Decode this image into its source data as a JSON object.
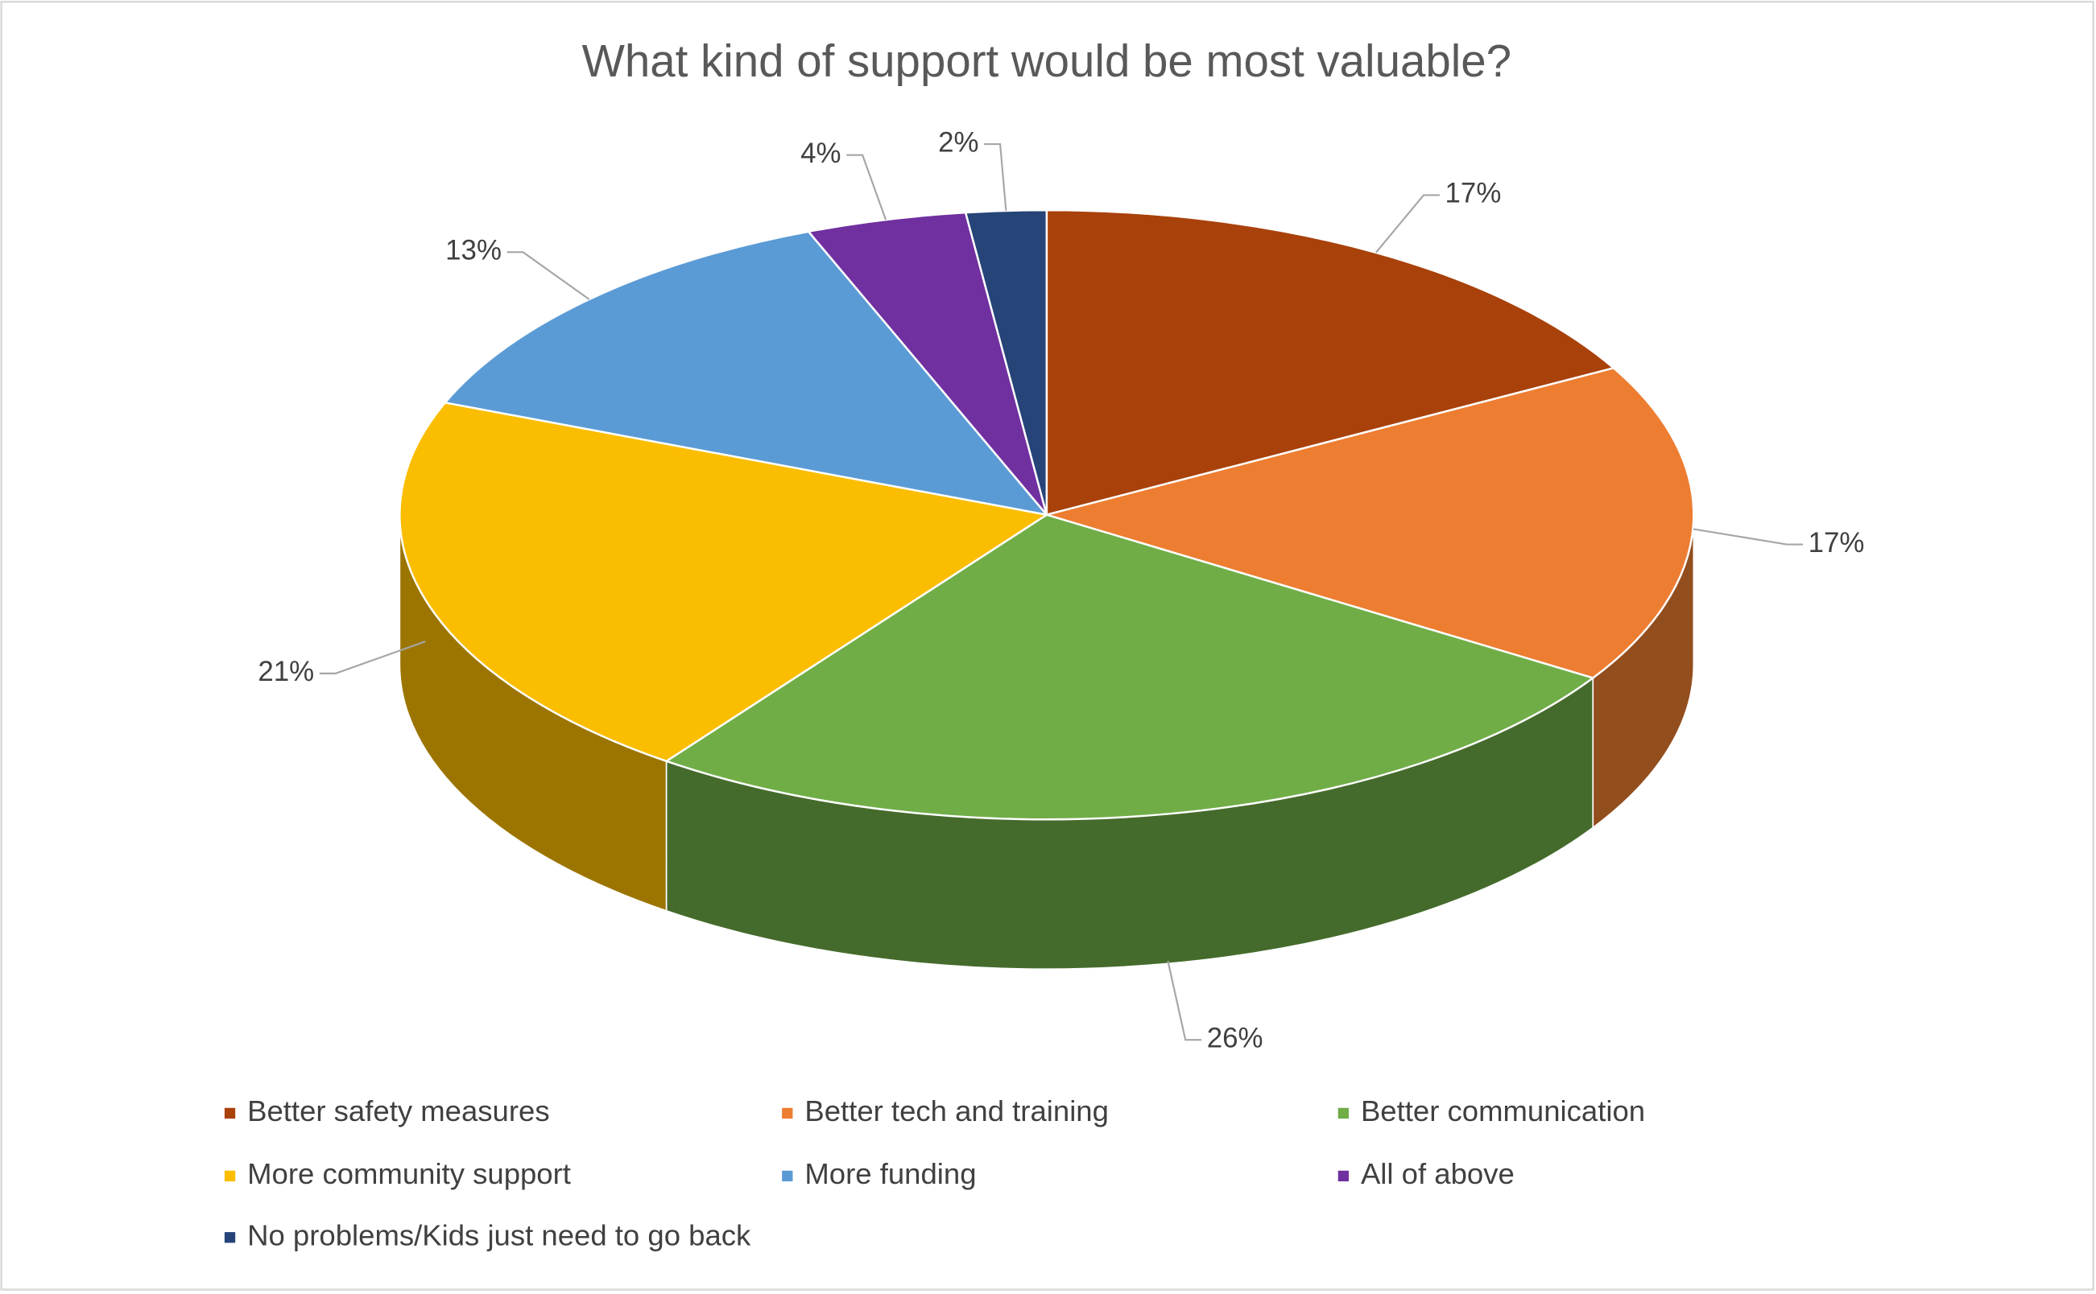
{
  "chart_data": {
    "type": "pie",
    "title": "What kind of support would be most valuable?",
    "categories": [
      "Better safety measures",
      "Better tech and training",
      "Better communication",
      "More community support",
      "More funding",
      "All of above",
      "No problems/Kids just need to go back"
    ],
    "values": [
      17,
      17,
      26,
      21,
      13,
      4,
      2
    ],
    "value_labels": [
      "17%",
      "17%",
      "26%",
      "21%",
      "13%",
      "4%",
      "2%"
    ],
    "colors": [
      "#a9410b",
      "#ed7d31",
      "#70ad47",
      "#fbbd00",
      "#5b9bd5",
      "#7030a0",
      "#264478"
    ]
  }
}
